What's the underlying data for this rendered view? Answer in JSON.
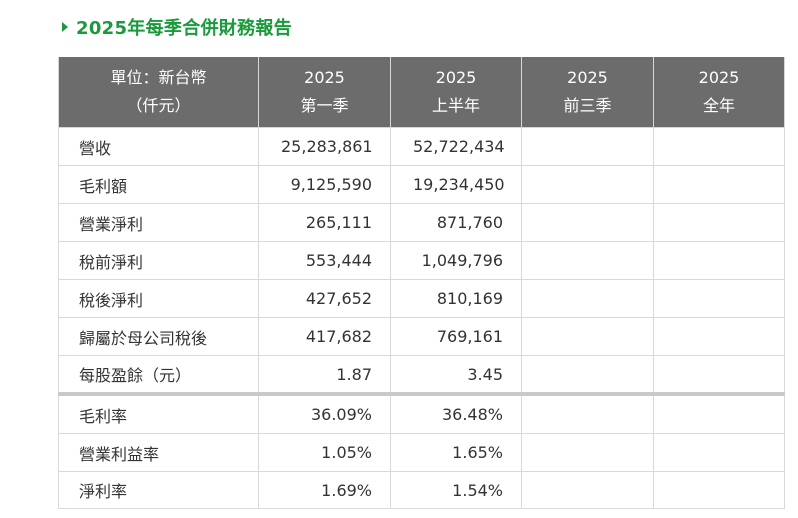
{
  "title": "2025年每季合併財務報告",
  "header": {
    "unit_line1": "單位：新台幣",
    "unit_line2": "（仟元）",
    "col1_year": "2025",
    "col1_period": "第一季",
    "col2_year": "2025",
    "col2_period": "上半年",
    "col3_year": "2025",
    "col3_period": "前三季",
    "col4_year": "2025",
    "col4_period": "全年"
  },
  "rows": [
    {
      "label": "營收",
      "q1": "25,283,861",
      "h1": "52,722,434",
      "q3": "",
      "fy": ""
    },
    {
      "label": "毛利額",
      "q1": "9,125,590",
      "h1": "19,234,450",
      "q3": "",
      "fy": ""
    },
    {
      "label": "營業淨利",
      "q1": "265,111",
      "h1": "871,760",
      "q3": "",
      "fy": ""
    },
    {
      "label": "稅前淨利",
      "q1": "553,444",
      "h1": "1,049,796",
      "q3": "",
      "fy": ""
    },
    {
      "label": "稅後淨利",
      "q1": "427,652",
      "h1": "810,169",
      "q3": "",
      "fy": ""
    },
    {
      "label": "歸屬於母公司稅後",
      "q1": "417,682",
      "h1": "769,161",
      "q3": "",
      "fy": ""
    },
    {
      "label": "每股盈餘（元）",
      "q1": "1.87",
      "h1": "3.45",
      "q3": "",
      "fy": ""
    },
    {
      "label": "毛利率",
      "q1": "36.09%",
      "h1": "36.48%",
      "q3": "",
      "fy": ""
    },
    {
      "label": "營業利益率",
      "q1": "1.05%",
      "h1": "1.65%",
      "q3": "",
      "fy": ""
    },
    {
      "label": "淨利率",
      "q1": "1.69%",
      "h1": "1.54%",
      "q3": "",
      "fy": ""
    }
  ],
  "colors": {
    "title_green": "#1a9a3c",
    "header_bg": "#6c6c6c",
    "header_text": "#ffffff",
    "grid": "#d9d9d9"
  }
}
